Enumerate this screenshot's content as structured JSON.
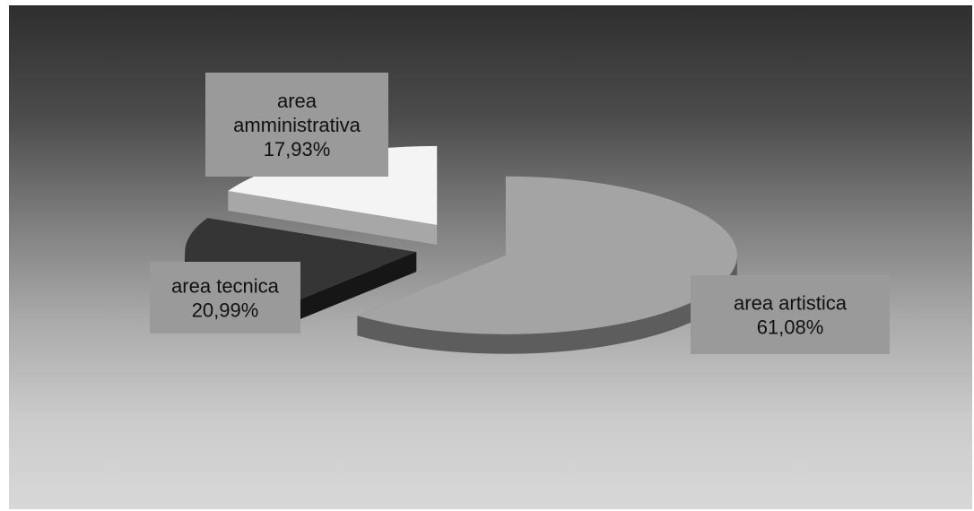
{
  "chart_data": {
    "type": "pie",
    "style": "3d-exploded",
    "slices": [
      {
        "label": "area artistica",
        "value": 61.08,
        "value_text": "61,08%",
        "color": "#a4a4a4",
        "side": "#5d5d5d"
      },
      {
        "label": "area tecnica",
        "value": 20.99,
        "value_text": "20,99%",
        "color": "#353535",
        "side": "#161616"
      },
      {
        "label": "area amministrativa",
        "value": 17.93,
        "value_text": "17,93%",
        "color": "#f4f4f4",
        "side": "#a7a7a7"
      }
    ],
    "title": "",
    "legend": "none",
    "label_box_color": "#9a9a9a"
  }
}
